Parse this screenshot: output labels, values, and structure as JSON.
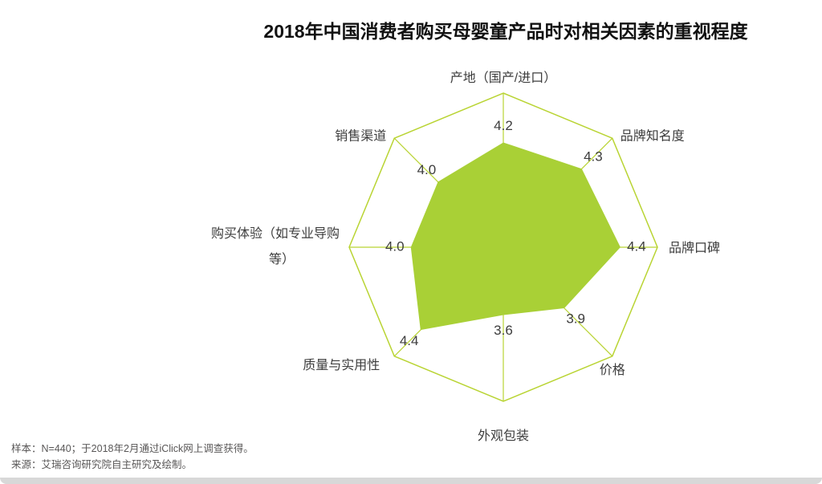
{
  "title": "2018年中国消费者购买母婴童产品时对相关因素的重视程度",
  "chart_data": {
    "type": "radar",
    "title": "2018年中国消费者购买母婴童产品时对相关因素的重视程度",
    "axes": [
      {
        "label": "产地（国产/进口）",
        "value": 4.2
      },
      {
        "label": "品牌知名度",
        "value": 4.3
      },
      {
        "label": "品牌口碑",
        "value": 4.4
      },
      {
        "label": "价格",
        "value": 3.9
      },
      {
        "label": "外观包装",
        "value": 3.6
      },
      {
        "label": "质量与实用性",
        "value": 4.4
      },
      {
        "label": "购买体验（如专业导购等）",
        "label_lines": [
          "购买体验（如专业导购",
          "等）"
        ],
        "value": 4.0
      },
      {
        "label": "销售渠道",
        "value": 4.0
      }
    ],
    "scale": {
      "min": 2.5,
      "max": 5
    },
    "grid": "outer-octagon-ring-with-spokes",
    "legend": "none",
    "colors": {
      "ring": "#b9d433",
      "spoke": "#b9d433",
      "fill": "#a9d036",
      "label_text": "#3d3d3d",
      "value_text": "#3d3d3d"
    }
  },
  "footer": {
    "line1": "样本：N=440；于2018年2月通过iClick网上调查获得。",
    "line2": "来源：艾瑞咨询研究院自主研究及绘制。"
  }
}
